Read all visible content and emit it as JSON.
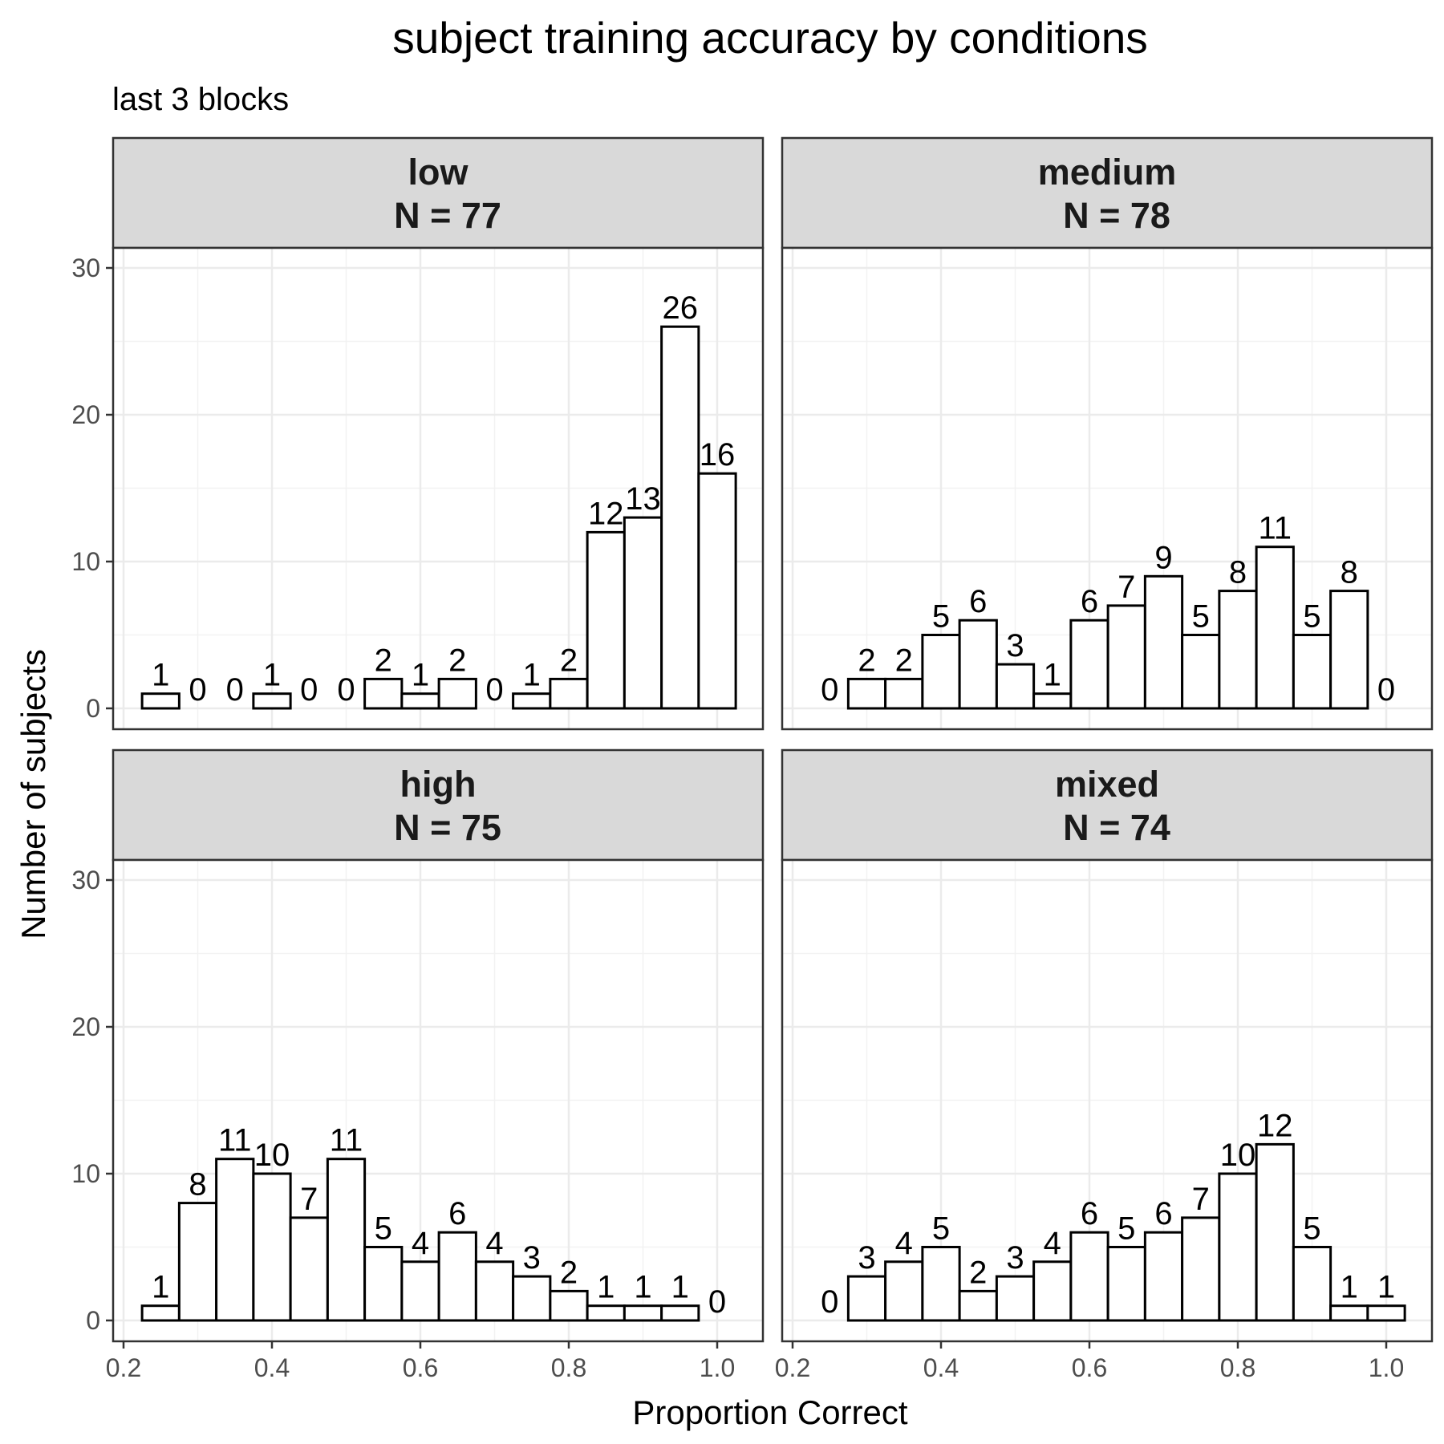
{
  "chart_data": {
    "type": "bar",
    "title": "subject training accuracy by conditions",
    "subtitle": "last 3 blocks",
    "xlabel": "Proportion Correct",
    "ylabel": "Number of subjects",
    "xlim": [
      0.2,
      1.05
    ],
    "ylim": [
      0,
      30
    ],
    "x_ticks": [
      0.2,
      0.4,
      0.6,
      0.8,
      1.0
    ],
    "x_tick_labels": [
      "0.2",
      "0.4",
      "0.6",
      "0.8",
      "1.0"
    ],
    "y_ticks": [
      0,
      10,
      20,
      30
    ],
    "y_tick_labels": [
      "0",
      "10",
      "20",
      "30"
    ],
    "bin_centers": [
      0.25,
      0.3,
      0.35,
      0.4,
      0.45,
      0.5,
      0.55,
      0.6,
      0.65,
      0.7,
      0.75,
      0.8,
      0.85,
      0.9,
      0.95,
      1.0
    ],
    "bin_width": 0.05,
    "grid": true,
    "bar_fill": "#ffffff",
    "bar_stroke": "#000000",
    "strip_fill": "#d9d9d9",
    "facets": [
      {
        "name": "low",
        "n_label": "N = 77",
        "values": [
          1,
          0,
          0,
          1,
          0,
          0,
          2,
          1,
          2,
          0,
          1,
          2,
          12,
          13,
          26,
          16
        ]
      },
      {
        "name": "medium",
        "n_label": "N = 78",
        "values": [
          0,
          2,
          2,
          5,
          6,
          3,
          1,
          6,
          7,
          9,
          5,
          8,
          11,
          5,
          8,
          0
        ]
      },
      {
        "name": "high",
        "n_label": "N = 75",
        "values": [
          1,
          8,
          11,
          10,
          7,
          11,
          5,
          4,
          6,
          4,
          3,
          2,
          1,
          1,
          1,
          0
        ]
      },
      {
        "name": "mixed",
        "n_label": "N = 74",
        "values": [
          0,
          3,
          4,
          5,
          2,
          3,
          4,
          6,
          5,
          6,
          7,
          10,
          12,
          5,
          1,
          1
        ]
      }
    ]
  }
}
